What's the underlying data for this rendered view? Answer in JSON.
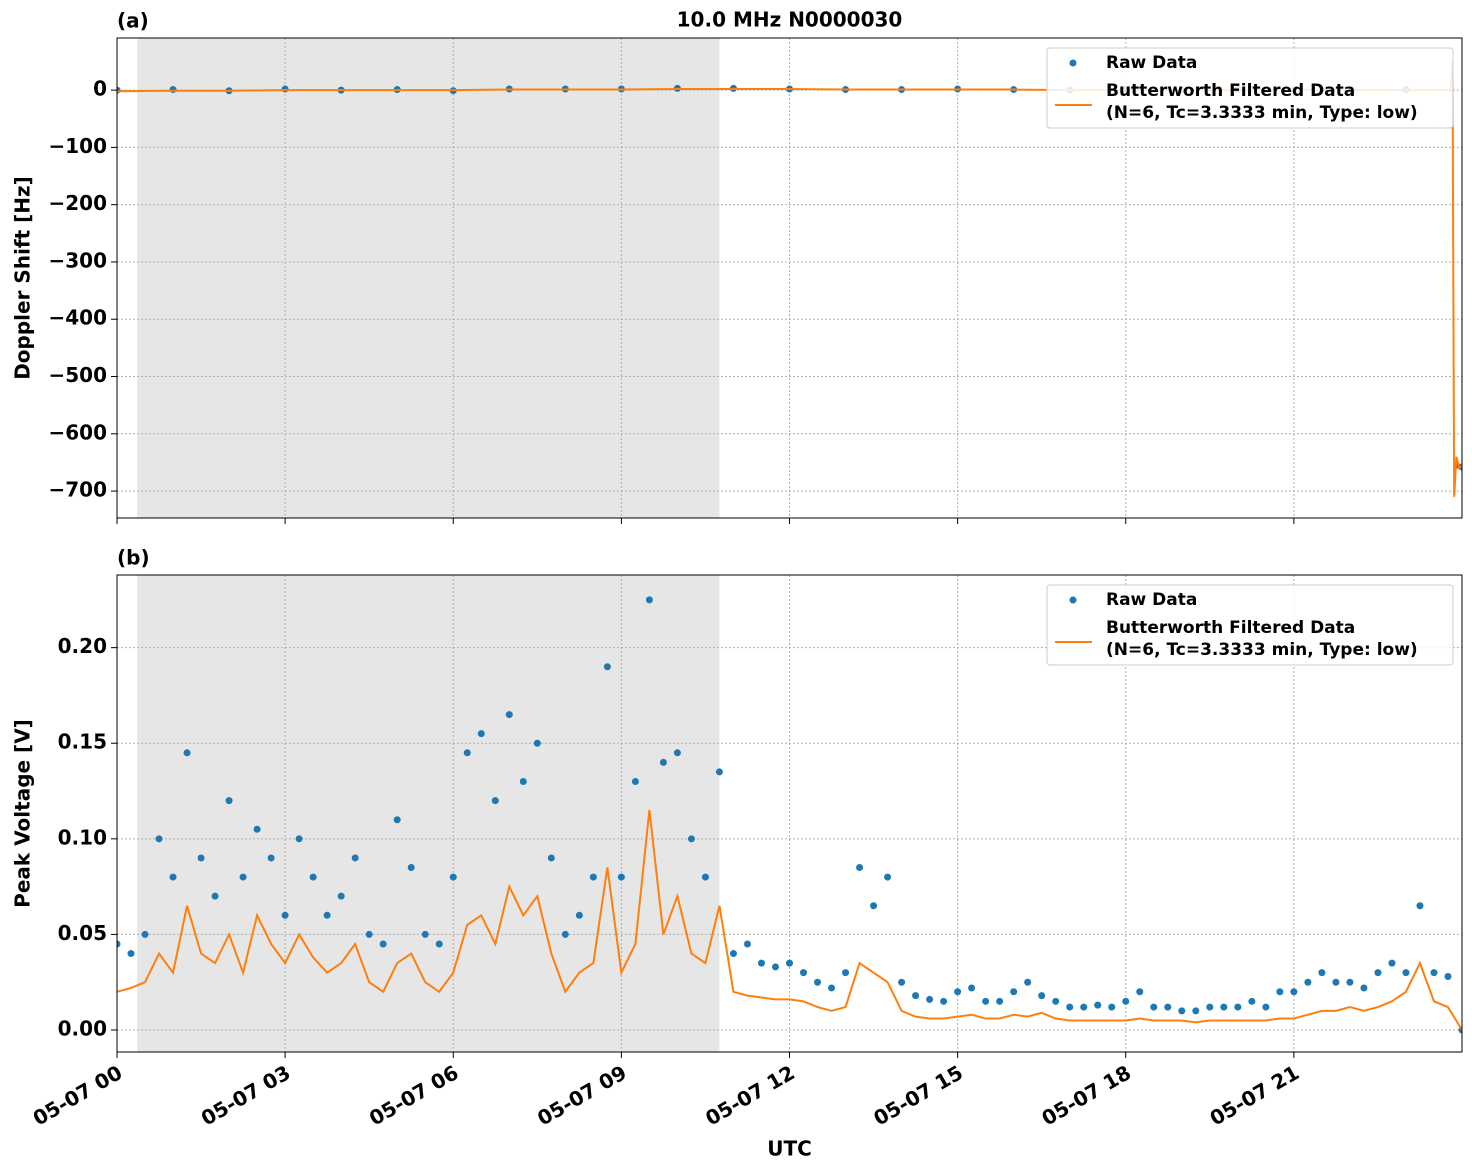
{
  "chart_data": [
    {
      "type": "scatter-line",
      "panel_label": "(a)",
      "title": "10.0 MHz N0000030",
      "ylabel": "Doppler Shift [Hz]",
      "xlim": [
        0,
        24
      ],
      "xticks": [
        0,
        3,
        6,
        9,
        12,
        15,
        18,
        21
      ],
      "ylim": [
        -747,
        91
      ],
      "yticks": [
        {
          "value": -700,
          "label": "−700"
        },
        {
          "value": -600,
          "label": "−600"
        },
        {
          "value": -500,
          "label": "−500"
        },
        {
          "value": -400,
          "label": "−400"
        },
        {
          "value": -300,
          "label": "−300"
        },
        {
          "value": -200,
          "label": "−200"
        },
        {
          "value": -100,
          "label": "−100"
        },
        0
      ],
      "grid": true,
      "legend": "upper right",
      "shaded_span": [
        0.36,
        10.75
      ],
      "series": [
        {
          "name": "Raw Data",
          "style": "dots",
          "color": "#1f77b4",
          "x": [
            0,
            1,
            2,
            3,
            4,
            5,
            6,
            7,
            8,
            9,
            10,
            11,
            12,
            13,
            14,
            15,
            16,
            17,
            18,
            19,
            20,
            21,
            22,
            23,
            23.9,
            24
          ],
          "values": [
            0,
            1,
            -1,
            2,
            0,
            1,
            -1,
            2,
            2,
            2,
            3,
            3,
            2,
            1,
            1,
            2,
            1,
            0,
            1,
            0,
            1,
            1,
            0,
            1,
            -655,
            -658
          ]
        },
        {
          "name": "Butterworth Filtered Data\n(N=6, Tc=3.3333 min, Type: low)",
          "style": "line",
          "color": "#ff7f0e",
          "x": [
            0,
            1,
            2,
            3,
            4,
            5,
            6,
            7,
            8,
            9,
            10,
            11,
            12,
            13,
            14,
            15,
            16,
            17,
            18,
            19,
            20,
            21,
            22,
            23,
            23.8,
            23.83,
            23.86,
            23.9,
            23.95,
            24
          ],
          "values": [
            -2,
            -1,
            -1,
            0,
            0,
            0,
            0,
            1,
            1,
            1,
            2,
            2,
            2,
            1,
            1,
            1,
            1,
            0,
            0,
            0,
            0,
            1,
            0,
            0,
            0,
            50,
            -710,
            -640,
            -660,
            -655
          ]
        }
      ]
    },
    {
      "type": "scatter-line",
      "panel_label": "(b)",
      "ylabel": "Peak Voltage [V]",
      "xlabel": "UTC",
      "xlim": [
        0,
        24
      ],
      "xticks": [
        {
          "value": 0,
          "label": "05-07 00"
        },
        {
          "value": 3,
          "label": "05-07 03"
        },
        {
          "value": 6,
          "label": "05-07 06"
        },
        {
          "value": 9,
          "label": "05-07 09"
        },
        {
          "value": 12,
          "label": "05-07 12"
        },
        {
          "value": 15,
          "label": "05-07 15"
        },
        {
          "value": 18,
          "label": "05-07 18"
        },
        {
          "value": 21,
          "label": "05-07 21"
        }
      ],
      "ylim": [
        -0.0115,
        0.238
      ],
      "yticks": [
        {
          "value": 0,
          "label": "0.00"
        },
        0.05,
        {
          "value": 0.1,
          "label": "0.10"
        },
        0.15,
        {
          "value": 0.2,
          "label": "0.20"
        }
      ],
      "grid": true,
      "legend": "upper right",
      "shaded_span": [
        0.36,
        10.75
      ],
      "series": [
        {
          "name": "Raw Data",
          "style": "dots",
          "color": "#1f77b4",
          "x": [
            0,
            0.25,
            0.5,
            0.75,
            1,
            1.25,
            1.5,
            1.75,
            2,
            2.25,
            2.5,
            2.75,
            3,
            3.25,
            3.5,
            3.75,
            4,
            4.25,
            4.5,
            4.75,
            5,
            5.25,
            5.5,
            5.75,
            6,
            6.25,
            6.5,
            6.75,
            7,
            7.25,
            7.5,
            7.75,
            8,
            8.25,
            8.5,
            8.75,
            9,
            9.25,
            9.5,
            9.75,
            10,
            10.25,
            10.5,
            10.75,
            11,
            11.25,
            11.5,
            11.75,
            12,
            12.25,
            12.5,
            12.75,
            13,
            13.25,
            13.5,
            13.75,
            14,
            14.25,
            14.5,
            14.75,
            15,
            15.25,
            15.5,
            15.75,
            16,
            16.25,
            16.5,
            16.75,
            17,
            17.25,
            17.5,
            17.75,
            18,
            18.25,
            18.5,
            18.75,
            19,
            19.25,
            19.5,
            19.75,
            20,
            20.25,
            20.5,
            20.75,
            21,
            21.25,
            21.5,
            21.75,
            22,
            22.25,
            22.5,
            22.75,
            23,
            23.25,
            23.5,
            23.75,
            24
          ],
          "values": [
            0.045,
            0.04,
            0.05,
            0.1,
            0.08,
            0.145,
            0.09,
            0.07,
            0.12,
            0.08,
            0.105,
            0.09,
            0.06,
            0.1,
            0.08,
            0.06,
            0.07,
            0.09,
            0.05,
            0.045,
            0.11,
            0.085,
            0.05,
            0.045,
            0.08,
            0.145,
            0.155,
            0.12,
            0.165,
            0.13,
            0.15,
            0.09,
            0.05,
            0.06,
            0.08,
            0.19,
            0.08,
            0.13,
            0.225,
            0.14,
            0.145,
            0.1,
            0.08,
            0.135,
            0.04,
            0.045,
            0.035,
            0.033,
            0.035,
            0.03,
            0.025,
            0.022,
            0.03,
            0.085,
            0.065,
            0.08,
            0.025,
            0.018,
            0.016,
            0.015,
            0.02,
            0.022,
            0.015,
            0.015,
            0.02,
            0.025,
            0.018,
            0.015,
            0.012,
            0.012,
            0.013,
            0.012,
            0.015,
            0.02,
            0.012,
            0.012,
            0.01,
            0.01,
            0.012,
            0.012,
            0.012,
            0.015,
            0.012,
            0.02,
            0.02,
            0.025,
            0.03,
            0.025,
            0.025,
            0.022,
            0.03,
            0.035,
            0.03,
            0.065,
            0.03,
            0.028,
            0
          ]
        },
        {
          "name": "Butterworth Filtered Data\n(N=6, Tc=3.3333 min, Type: low)",
          "style": "line",
          "color": "#ff7f0e",
          "x": [
            0,
            0.25,
            0.5,
            0.75,
            1,
            1.25,
            1.5,
            1.75,
            2,
            2.25,
            2.5,
            2.75,
            3,
            3.25,
            3.5,
            3.75,
            4,
            4.25,
            4.5,
            4.75,
            5,
            5.25,
            5.5,
            5.75,
            6,
            6.25,
            6.5,
            6.75,
            7,
            7.25,
            7.5,
            7.75,
            8,
            8.25,
            8.5,
            8.75,
            9,
            9.25,
            9.5,
            9.75,
            10,
            10.25,
            10.5,
            10.75,
            11,
            11.25,
            11.5,
            11.75,
            12,
            12.25,
            12.5,
            12.75,
            13,
            13.25,
            13.5,
            13.75,
            14,
            14.25,
            14.5,
            14.75,
            15,
            15.25,
            15.5,
            15.75,
            16,
            16.25,
            16.5,
            16.75,
            17,
            17.25,
            17.5,
            17.75,
            18,
            18.25,
            18.5,
            18.75,
            19,
            19.25,
            19.5,
            19.75,
            20,
            20.25,
            20.5,
            20.75,
            21,
            21.25,
            21.5,
            21.75,
            22,
            22.25,
            22.5,
            22.75,
            23,
            23.25,
            23.5,
            23.75,
            24
          ],
          "values": [
            0.02,
            0.022,
            0.025,
            0.04,
            0.03,
            0.065,
            0.04,
            0.035,
            0.05,
            0.03,
            0.06,
            0.045,
            0.035,
            0.05,
            0.038,
            0.03,
            0.035,
            0.045,
            0.025,
            0.02,
            0.035,
            0.04,
            0.025,
            0.02,
            0.03,
            0.055,
            0.06,
            0.045,
            0.075,
            0.06,
            0.07,
            0.04,
            0.02,
            0.03,
            0.035,
            0.085,
            0.03,
            0.045,
            0.115,
            0.05,
            0.07,
            0.04,
            0.035,
            0.065,
            0.02,
            0.018,
            0.017,
            0.016,
            0.016,
            0.015,
            0.012,
            0.01,
            0.012,
            0.035,
            0.03,
            0.025,
            0.01,
            0.007,
            0.006,
            0.006,
            0.007,
            0.008,
            0.006,
            0.006,
            0.008,
            0.007,
            0.009,
            0.006,
            0.005,
            0.005,
            0.005,
            0.005,
            0.005,
            0.006,
            0.005,
            0.005,
            0.005,
            0.004,
            0.005,
            0.005,
            0.005,
            0.005,
            0.005,
            0.006,
            0.006,
            0.008,
            0.01,
            0.01,
            0.012,
            0.01,
            0.012,
            0.015,
            0.02,
            0.035,
            0.015,
            0.012,
            0
          ]
        }
      ]
    }
  ]
}
